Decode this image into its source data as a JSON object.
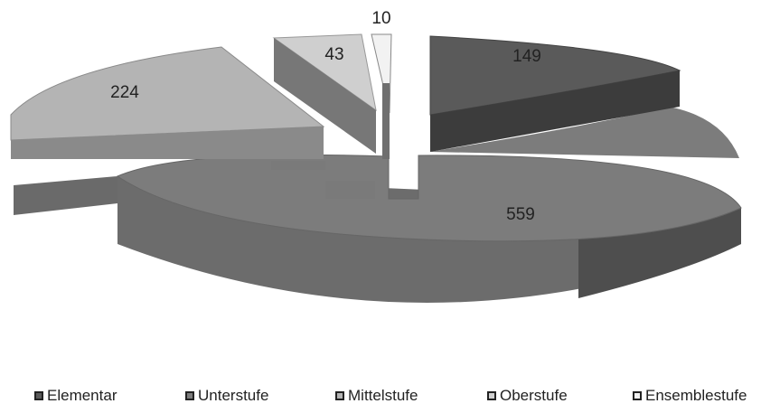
{
  "chart_data": {
    "type": "pie",
    "style": "3d-exploded",
    "categories": [
      "Elementar",
      "Unterstufe",
      "Mittelstufe",
      "Oberstufe",
      "Ensemblestufe"
    ],
    "values": [
      149,
      559,
      224,
      43,
      10
    ],
    "data_labels": [
      "149",
      "559",
      "224",
      "43",
      "10"
    ],
    "colors": [
      "#5a5a5a",
      "#7c7c7c",
      "#b4b4b4",
      "#cfcfcf",
      "#f2f2f2"
    ],
    "legend_position": "bottom",
    "legend": [
      "Elementar",
      "Unterstufe",
      "Mittelstufe",
      "Oberstufe",
      "Ensemblestufe"
    ]
  }
}
